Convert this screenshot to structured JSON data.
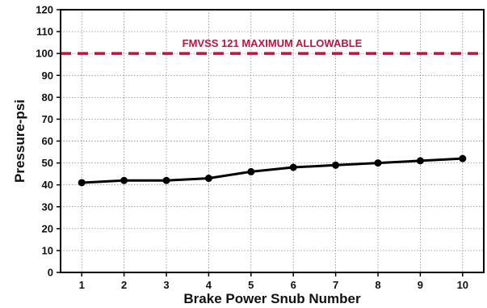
{
  "chart_data": {
    "type": "line",
    "title": "",
    "xlabel": "Brake Power Snub Number",
    "ylabel": "Pressure-psi",
    "x": [
      1,
      2,
      3,
      4,
      5,
      6,
      7,
      8,
      9,
      10
    ],
    "y": [
      41,
      42,
      42,
      43,
      46,
      48,
      49,
      50,
      51,
      52
    ],
    "xlim": [
      0.5,
      10.5
    ],
    "ylim": [
      0,
      120
    ],
    "yticks": [
      0,
      10,
      20,
      30,
      40,
      50,
      60,
      70,
      80,
      90,
      100,
      110,
      120
    ],
    "grid": true,
    "line_color": "#000000",
    "reference_line": {
      "y": 100,
      "label": "FMVSS 121 MAXIMUM ALLOWABLE",
      "color": "#c8103e",
      "style": "dashed"
    }
  }
}
